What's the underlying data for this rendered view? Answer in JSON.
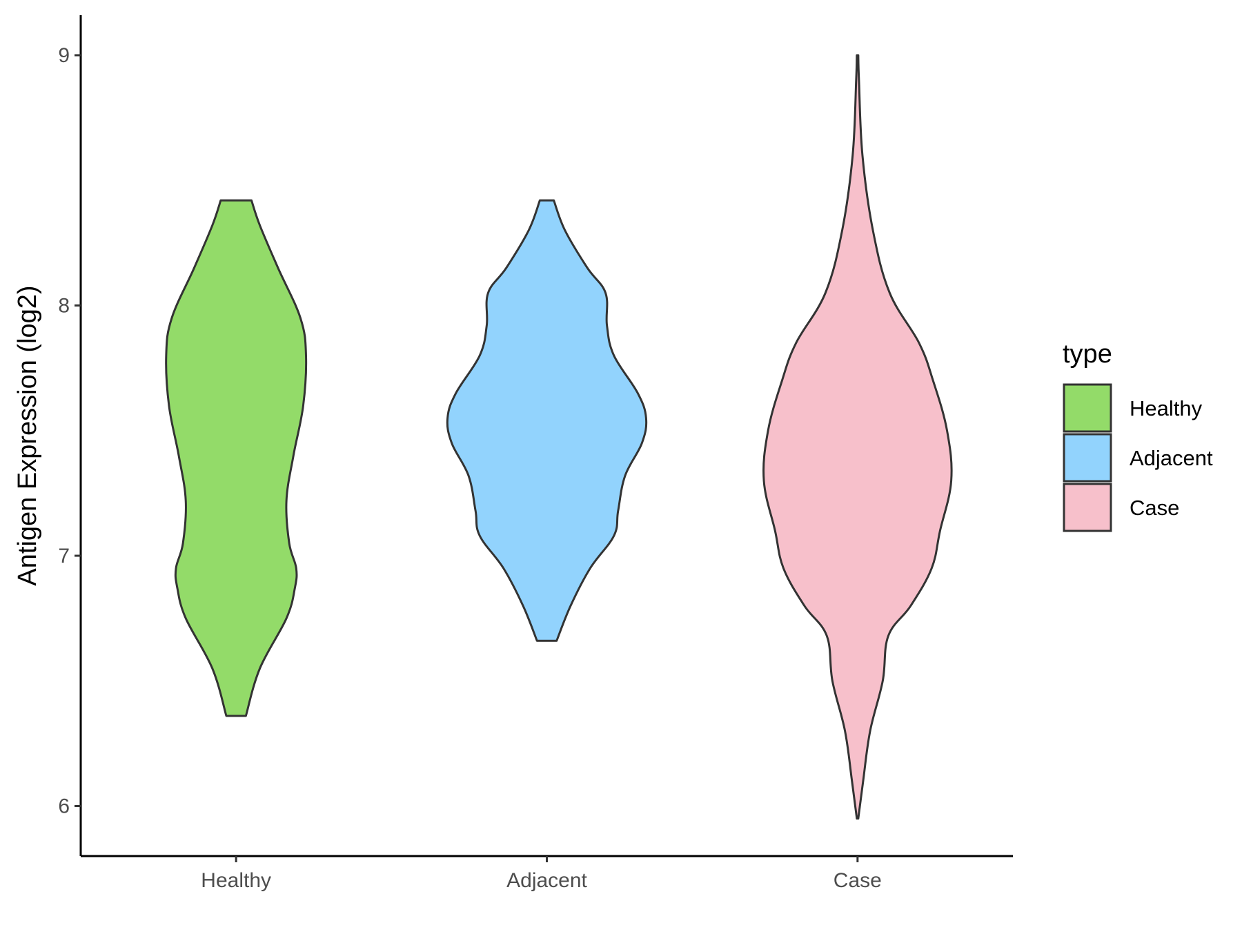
{
  "chart_data": {
    "type": "violin",
    "xlabel": "",
    "ylabel": "Antigen Expression (log2)",
    "ylim": [
      5.8,
      9.16
    ],
    "yticks": [
      6,
      7,
      8,
      9
    ],
    "categories": [
      "Healthy",
      "Adjacent",
      "Case"
    ],
    "legend": {
      "title": "type",
      "position": "right"
    },
    "grid": false,
    "series": [
      {
        "name": "Healthy",
        "color": "#93DB69",
        "min": 6.36,
        "max": 8.42,
        "density": [
          [
            6.36,
            0.07
          ],
          [
            6.55,
            0.17
          ],
          [
            6.75,
            0.36
          ],
          [
            6.87,
            0.42
          ],
          [
            6.95,
            0.43
          ],
          [
            7.05,
            0.38
          ],
          [
            7.22,
            0.36
          ],
          [
            7.4,
            0.41
          ],
          [
            7.6,
            0.48
          ],
          [
            7.8,
            0.5
          ],
          [
            7.95,
            0.46
          ],
          [
            8.15,
            0.3
          ],
          [
            8.32,
            0.17
          ],
          [
            8.42,
            0.11
          ]
        ]
      },
      {
        "name": "Adjacent",
        "color": "#92D3FD",
        "min": 6.66,
        "max": 8.42,
        "density": [
          [
            6.66,
            0.07
          ],
          [
            6.8,
            0.17
          ],
          [
            6.95,
            0.31
          ],
          [
            7.08,
            0.48
          ],
          [
            7.18,
            0.51
          ],
          [
            7.32,
            0.56
          ],
          [
            7.45,
            0.68
          ],
          [
            7.55,
            0.71
          ],
          [
            7.65,
            0.65
          ],
          [
            7.8,
            0.48
          ],
          [
            7.92,
            0.43
          ],
          [
            8.05,
            0.42
          ],
          [
            8.15,
            0.29
          ],
          [
            8.3,
            0.13
          ],
          [
            8.42,
            0.05
          ]
        ]
      },
      {
        "name": "Case",
        "color": "#F7C0CB",
        "min": 5.95,
        "max": 9.0,
        "density": [
          [
            5.95,
            0.005
          ],
          [
            6.1,
            0.04
          ],
          [
            6.3,
            0.09
          ],
          [
            6.5,
            0.18
          ],
          [
            6.68,
            0.22
          ],
          [
            6.8,
            0.38
          ],
          [
            6.95,
            0.53
          ],
          [
            7.1,
            0.59
          ],
          [
            7.3,
            0.67
          ],
          [
            7.5,
            0.64
          ],
          [
            7.7,
            0.54
          ],
          [
            7.85,
            0.44
          ],
          [
            8.05,
            0.23
          ],
          [
            8.3,
            0.11
          ],
          [
            8.6,
            0.035
          ],
          [
            8.9,
            0.01
          ],
          [
            9.0,
            0.005
          ]
        ]
      }
    ]
  }
}
